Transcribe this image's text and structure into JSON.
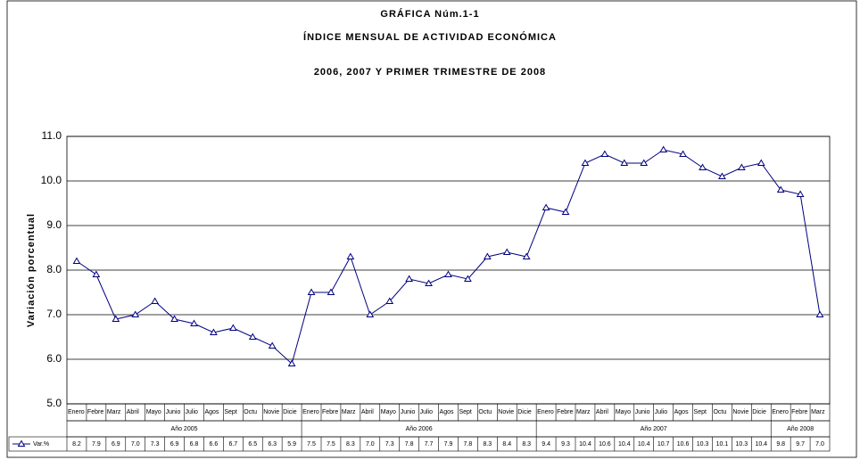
{
  "chart_data": {
    "type": "line",
    "title": "GRÁFICA Núm.1-1",
    "title2": "ÍNDICE MENSUAL DE ACTIVIDAD ECONÓMICA",
    "subtitle": "2006, 2007 Y PRIMER TRIMESTRE DE 2008",
    "ylabel": "Variación porcentual",
    "category_groups": [
      {
        "name": "Año 2005",
        "categories": [
          "Enero",
          "Febre",
          "Marz",
          "Abril",
          "Mayo",
          "Junio",
          "Julio",
          "Agos",
          "Sept",
          "Octu",
          "Novie",
          "Dicie"
        ]
      },
      {
        "name": "Año 2006",
        "categories": [
          "Enero",
          "Febre",
          "Marz",
          "Abril",
          "Mayo",
          "Junio",
          "Julio",
          "Agos",
          "Sept",
          "Octu",
          "Novie",
          "Dicie"
        ]
      },
      {
        "name": "Año 2007",
        "categories": [
          "Enero",
          "Febre",
          "Marz",
          "Abril",
          "Mayo",
          "Junio",
          "Julio",
          "Agos",
          "Sept",
          "Octu",
          "Novie",
          "Dicie"
        ]
      },
      {
        "name": "Año 2008",
        "categories": [
          "Enero",
          "Febre",
          "Marz"
        ]
      }
    ],
    "series": [
      {
        "name": "Var.%",
        "color": "#000080",
        "values": [
          8.2,
          7.9,
          6.9,
          7.0,
          7.3,
          6.9,
          6.8,
          6.6,
          6.7,
          6.5,
          6.3,
          5.9,
          7.5,
          7.5,
          8.3,
          7.0,
          7.3,
          7.8,
          7.7,
          7.9,
          7.8,
          8.3,
          8.4,
          8.3,
          9.4,
          9.3,
          10.4,
          10.6,
          10.4,
          10.4,
          10.7,
          10.6,
          10.3,
          10.1,
          10.3,
          10.4,
          9.8,
          9.7,
          7.0
        ],
        "value_labels": [
          "8.2",
          "7.9",
          "6.9",
          "7.0",
          "7.3",
          "6.9",
          "6.8",
          "6.6",
          "6.7",
          "6.5",
          "6.3",
          "5.9",
          "7.5",
          "7.5",
          "8.3",
          "7.0",
          "7.3",
          "7.8",
          "7.7",
          "7.9",
          "7.8",
          "8.3",
          "8.4",
          "8.3",
          "9.4",
          "9.3",
          "10.4",
          "10.6",
          "10.4",
          "10.4",
          "10.7",
          "10.6",
          "10.3",
          "10.1",
          "10.3",
          "10.4",
          "9.8",
          "9.7",
          "7.0"
        ]
      }
    ],
    "ylim": [
      5,
      11
    ],
    "yticks": [
      {
        "value": 5,
        "label": "5.0"
      },
      {
        "value": 6,
        "label": "6.0"
      },
      {
        "value": 7,
        "label": "7.0"
      },
      {
        "value": 8,
        "label": "8.0"
      },
      {
        "value": 9,
        "label": "9.0"
      },
      {
        "value": 10,
        "label": "10.0"
      },
      {
        "value": 11,
        "label": "11.0"
      }
    ],
    "grid": true
  }
}
